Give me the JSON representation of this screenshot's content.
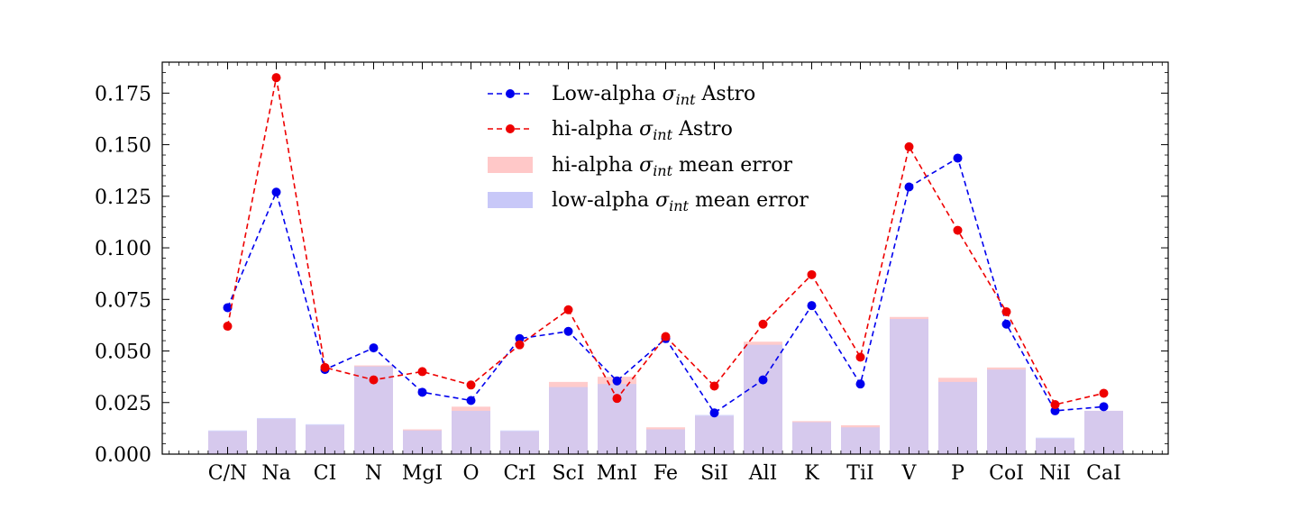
{
  "chart_data": {
    "type": "bar",
    "title": "",
    "xlabel": "",
    "ylabel": "",
    "ylim": [
      0,
      0.19
    ],
    "y_ticks": [
      0.0,
      0.025,
      0.05,
      0.075,
      0.1,
      0.125,
      0.15,
      0.175
    ],
    "y_tick_labels": [
      "0.000",
      "0.025",
      "0.050",
      "0.075",
      "0.100",
      "0.125",
      "0.150",
      "0.175"
    ],
    "categories": [
      "C/N",
      "Na",
      "CI",
      "N",
      "MgI",
      "O",
      "CrI",
      "ScI",
      "MnI",
      "Fe",
      "SiI",
      "AlI",
      "K",
      "TiI",
      "V",
      "P",
      "CoI",
      "NiI",
      "CaI"
    ],
    "legend_position": "top-center",
    "grid": false,
    "series": [
      {
        "name": "Low-alpha",
        "legend_symbol": "σ",
        "legend_subscript": "int",
        "legend_suffix": " Astro",
        "kind": "line",
        "color": "#0000ee",
        "values": [
          0.071,
          0.127,
          0.041,
          0.0515,
          0.03,
          0.026,
          0.056,
          0.0595,
          0.0355,
          0.056,
          0.02,
          0.036,
          0.072,
          0.034,
          0.1295,
          0.1435,
          0.063,
          0.021,
          0.023
        ]
      },
      {
        "name": "hi-alpha",
        "legend_symbol": "σ",
        "legend_subscript": "int",
        "legend_suffix": " Astro",
        "kind": "line",
        "color": "#ee0000",
        "values": [
          0.062,
          0.1825,
          0.042,
          0.036,
          0.04,
          0.0335,
          0.053,
          0.07,
          0.027,
          0.057,
          0.033,
          0.063,
          0.087,
          0.047,
          0.149,
          0.1085,
          0.069,
          0.024,
          0.0295
        ]
      },
      {
        "name": "hi-alpha",
        "legend_symbol": "σ",
        "legend_subscript": "int",
        "legend_suffix": " mean error",
        "kind": "bar",
        "color": "#ffc8c8",
        "values": [
          0.011,
          0.017,
          0.014,
          0.043,
          0.012,
          0.023,
          0.011,
          0.035,
          0.0375,
          0.013,
          0.0185,
          0.0545,
          0.016,
          0.014,
          0.0665,
          0.037,
          0.042,
          0.0075,
          0.021
        ]
      },
      {
        "name": "low-alpha",
        "legend_symbol": "σ",
        "legend_subscript": "int",
        "legend_suffix": " mean error",
        "kind": "bar",
        "color": "#c8c8f8",
        "values": [
          0.0115,
          0.0175,
          0.0145,
          0.0425,
          0.0115,
          0.021,
          0.0115,
          0.0325,
          0.034,
          0.012,
          0.019,
          0.053,
          0.0155,
          0.013,
          0.0655,
          0.035,
          0.041,
          0.008,
          0.021
        ]
      }
    ]
  }
}
